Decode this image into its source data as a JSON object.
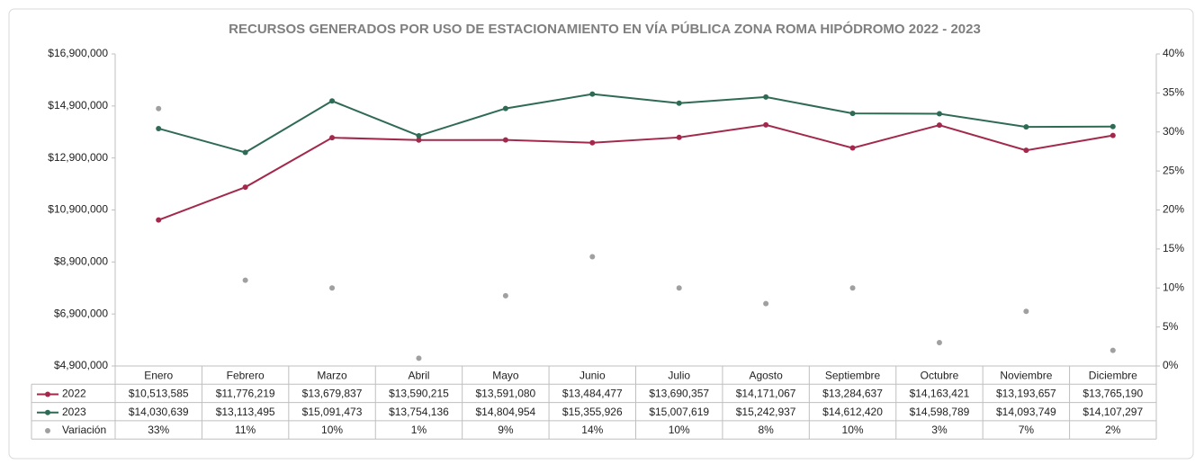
{
  "chart_data": {
    "type": "line",
    "title": "RECURSOS GENERADOS POR USO DE ESTACIONAMIENTO EN VÍA PÚBLICA ZONA ROMA HIPÓDROMO 2022   -   2023",
    "categories": [
      "Enero",
      "Febrero",
      "Marzo",
      "Abril",
      "Mayo",
      "Junio",
      "Julio",
      "Agosto",
      "Septiembre",
      "Octubre",
      "Noviembre",
      "Diciembre"
    ],
    "series": [
      {
        "name": "2022",
        "color": "#a3294c",
        "values": [
          10513585,
          11776219,
          13679837,
          13590215,
          13591080,
          13484477,
          13690357,
          14171067,
          13284637,
          14163421,
          13193657,
          13765190
        ],
        "value_labels": [
          "$10,513,585",
          "$11,776,219",
          "$13,679,837",
          "$13,590,215",
          "$13,591,080",
          "$13,484,477",
          "$13,690,357",
          "$14,171,067",
          "$13,284,637",
          "$14,163,421",
          "$13,193,657",
          "$13,765,190"
        ]
      },
      {
        "name": "2023",
        "color": "#2f6a55",
        "values": [
          14030639,
          13113495,
          15091473,
          13754136,
          14804954,
          15355926,
          15007619,
          15242937,
          14612420,
          14598789,
          14093749,
          14107297
        ],
        "value_labels": [
          "$14,030,639",
          "$13,113,495",
          "$15,091,473",
          "$13,754,136",
          "$14,804,954",
          "$15,355,926",
          "$15,007,619",
          "$15,242,937",
          "$14,612,420",
          "$14,598,789",
          "$14,093,749",
          "$14,107,297"
        ]
      },
      {
        "name": "Variación",
        "color": "#a0a0a0",
        "axis": "y2",
        "markers_only": true,
        "values": [
          33,
          11,
          10,
          1,
          9,
          14,
          10,
          8,
          10,
          3,
          7,
          2
        ],
        "value_labels": [
          "33%",
          "11%",
          "10%",
          "1%",
          "9%",
          "14%",
          "10%",
          "8%",
          "10%",
          "3%",
          "7%",
          "2%"
        ]
      }
    ],
    "ylim": [
      4900000,
      16900000
    ],
    "yticks": [
      {
        "value": 4900000,
        "label": "$4,900,000"
      },
      {
        "value": 6900000,
        "label": "$6,900,000"
      },
      {
        "value": 8900000,
        "label": "$8,900,000"
      },
      {
        "value": 10900000,
        "label": "$10,900,000"
      },
      {
        "value": 12900000,
        "label": "$12,900,000"
      },
      {
        "value": 14900000,
        "label": "$14,900,000"
      },
      {
        "value": 16900000,
        "label": "$16,900,000"
      }
    ],
    "y2lim": [
      0,
      40
    ],
    "y2ticks": [
      {
        "value": 0,
        "label": "0%"
      },
      {
        "value": 5,
        "label": "5%"
      },
      {
        "value": 10,
        "label": "10%"
      },
      {
        "value": 15,
        "label": "15%"
      },
      {
        "value": 20,
        "label": "20%"
      },
      {
        "value": 25,
        "label": "25%"
      },
      {
        "value": 30,
        "label": "30%"
      },
      {
        "value": 35,
        "label": "35%"
      },
      {
        "value": 40,
        "label": "40%"
      }
    ],
    "grid": false,
    "data_table": true
  }
}
